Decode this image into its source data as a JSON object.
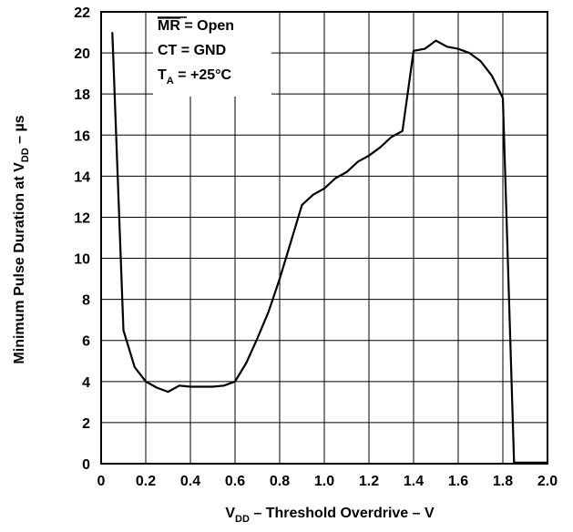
{
  "chart_data": {
    "type": "line",
    "xlabel": {
      "main": "V",
      "sub": "DD",
      "rest": " – Threshold Overdrive – V"
    },
    "ylabel": {
      "main": "Minimum Pulse Duration at V",
      "sub": "DD",
      "rest": " – µs"
    },
    "xlim": [
      0,
      2.0
    ],
    "ylim": [
      0,
      22
    ],
    "grid": true,
    "xticks": [
      "0",
      "0.2",
      "0.4",
      "0.6",
      "0.8",
      "1.0",
      "1.2",
      "1.4",
      "1.6",
      "1.8",
      "2.0"
    ],
    "yticks": [
      "0",
      "2",
      "4",
      "6",
      "8",
      "10",
      "12",
      "14",
      "16",
      "18",
      "20",
      "22"
    ],
    "conditions": {
      "mr": {
        "over": "MR",
        "rest": " = Open"
      },
      "ct": "CT = GND",
      "ta": {
        "main": "T",
        "sub": "A",
        "rest": " = +25°C"
      }
    },
    "series": [
      {
        "color": "#000000",
        "x": [
          0.05,
          0.1,
          0.15,
          0.2,
          0.25,
          0.3,
          0.35,
          0.4,
          0.45,
          0.5,
          0.55,
          0.6,
          0.65,
          0.7,
          0.75,
          0.8,
          0.85,
          0.9,
          0.95,
          1.0,
          1.05,
          1.1,
          1.15,
          1.2,
          1.25,
          1.3,
          1.35,
          1.4,
          1.45,
          1.5,
          1.55,
          1.6,
          1.65,
          1.7,
          1.75,
          1.8,
          1.85,
          1.9,
          1.95,
          2.0
        ],
        "y": [
          21.0,
          6.5,
          4.7,
          4.0,
          3.7,
          3.5,
          3.8,
          3.75,
          3.75,
          3.75,
          3.8,
          4.0,
          4.9,
          6.1,
          7.4,
          9.0,
          10.8,
          12.6,
          13.1,
          13.4,
          13.9,
          14.2,
          14.7,
          15.0,
          15.4,
          15.9,
          16.2,
          20.1,
          20.2,
          20.6,
          20.3,
          20.2,
          20.0,
          19.6,
          18.9,
          17.8,
          0.05,
          0.05,
          0.05,
          0.05
        ]
      }
    ]
  }
}
